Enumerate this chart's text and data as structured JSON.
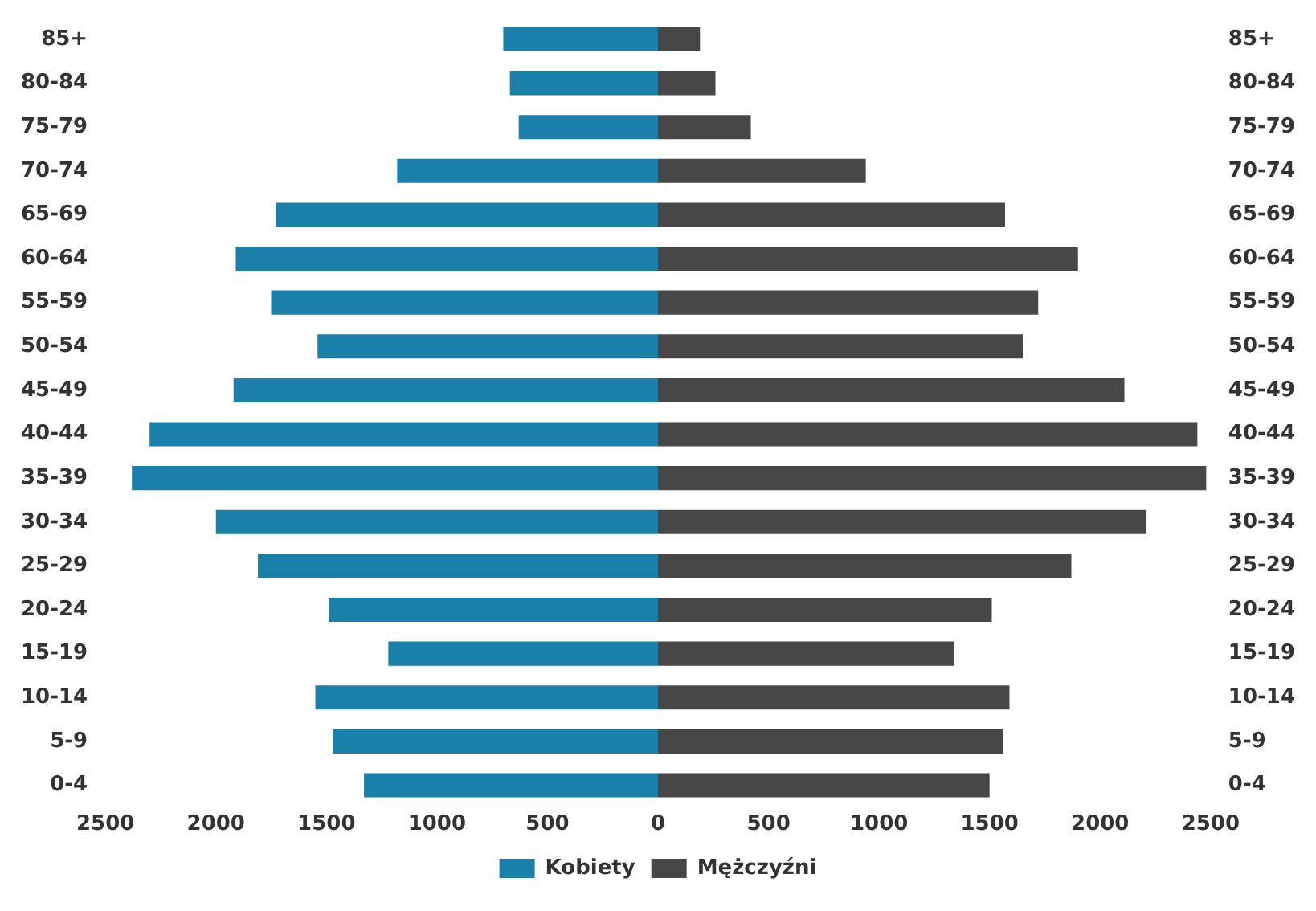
{
  "chart_data": {
    "type": "bar",
    "orientation": "horizontal",
    "stacked": true,
    "categories": [
      "85+",
      "80-84",
      "75-79",
      "70-74",
      "65-69",
      "60-64",
      "55-59",
      "50-54",
      "45-49",
      "40-44",
      "35-39",
      "30-34",
      "25-29",
      "20-24",
      "15-19",
      "10-14",
      "5-9",
      "0-4"
    ],
    "series": [
      {
        "name": "Kobiety",
        "color": "#1a80a9",
        "values": [
          -700,
          -670,
          -630,
          -1180,
          -1730,
          -1910,
          -1750,
          -1540,
          -1920,
          -2300,
          -2380,
          -2000,
          -1810,
          -1490,
          -1220,
          -1550,
          -1470,
          -1330
        ]
      },
      {
        "name": "Mężczyźni",
        "color": "#474747",
        "values": [
          190,
          260,
          420,
          940,
          1570,
          1900,
          1720,
          1650,
          2110,
          2440,
          2480,
          2210,
          1870,
          1510,
          1340,
          1590,
          1560,
          1500
        ]
      }
    ],
    "xlim": [
      -2500,
      2500
    ],
    "xticks": [
      {
        "value": -2500,
        "label": "2500"
      },
      {
        "value": -2000,
        "label": "2000"
      },
      {
        "value": -1500,
        "label": "1500"
      },
      {
        "value": -1000,
        "label": "1000"
      },
      {
        "value": -500,
        "label": "500"
      },
      0,
      500,
      1000,
      1500,
      2000,
      2500
    ],
    "grid": false,
    "legend": "bottom"
  }
}
